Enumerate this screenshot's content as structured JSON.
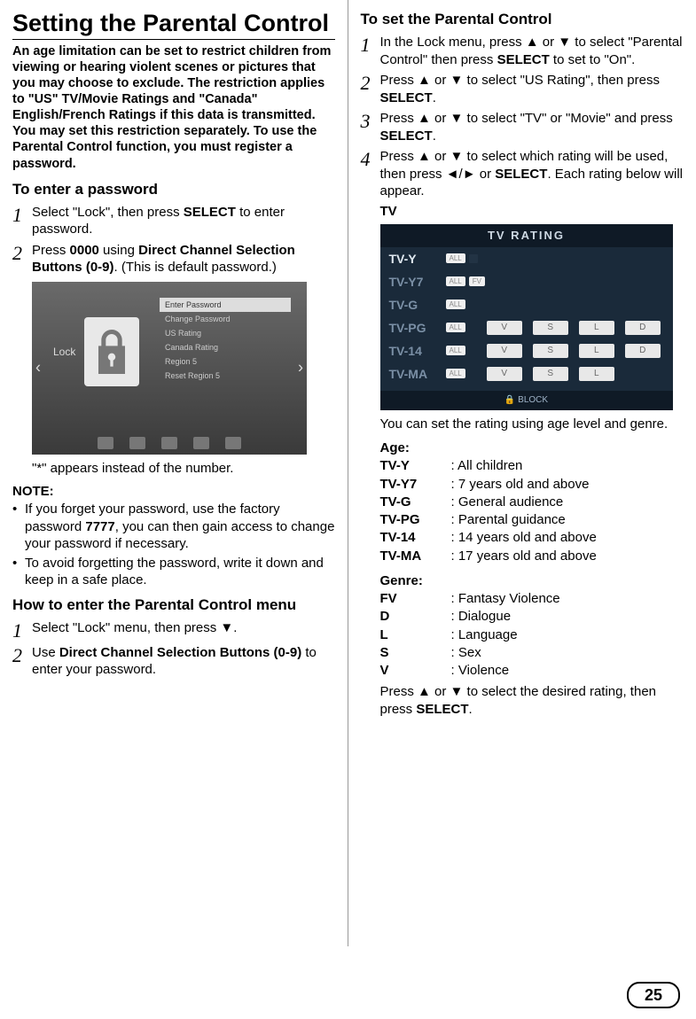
{
  "pageNumber": "25",
  "left": {
    "title": "Setting the Parental Control",
    "intro": "An age limitation can be set to restrict children from viewing or hearing violent scenes or pictures that you may choose to exclude. The restriction applies to \"US\" TV/Movie Ratings and \"Canada\" English/French Ratings if this data is transmitted. You may set this restriction separately. To use the Parental Control function, you must register a password.",
    "enterPassword": {
      "heading": "To enter a password",
      "steps": [
        {
          "num": "1",
          "html": "Select \"Lock\", then press <b>SELECT</b> to enter password."
        },
        {
          "num": "2",
          "html": "Press <b>0000</b> using <b>Direct Channel Selection Buttons (0-9)</b>. (This is default password.)"
        }
      ],
      "starNote": "\"*\" appears instead of the number.",
      "lockMenuItems": [
        "Enter Password",
        "Change Password",
        "US Rating",
        "Canada Rating",
        "Region 5",
        "Reset Region 5"
      ],
      "lockLabel": "Lock",
      "noteHd": "NOTE:",
      "notes": [
        "If you forget your password, use the factory password <b>7777</b>, you can then gain access to change your password if necessary.",
        "To avoid forgetting the password, write it down and keep in a safe place."
      ]
    },
    "enterMenu": {
      "heading": "How to enter the Parental Control menu",
      "steps": [
        {
          "num": "1",
          "html": "Select \"Lock\" menu, then press ▼."
        },
        {
          "num": "2",
          "html": "Use <b>Direct Channel Selection Buttons (0-9)</b> to enter your password."
        }
      ]
    }
  },
  "right": {
    "heading": "To set the Parental Control",
    "steps": [
      {
        "num": "1",
        "html": "In the Lock menu, press ▲ or ▼ to select \"Parental Control\" then press <b>SELECT</b> to set to \"On\"."
      },
      {
        "num": "2",
        "html": "Press ▲ or ▼ to select \"US Rating\", then press <b>SELECT</b>."
      },
      {
        "num": "3",
        "html": "Press ▲ or ▼ to select \"TV\" or \"Movie\" and press <b>SELECT</b>."
      },
      {
        "num": "4",
        "html": "Press ▲ or ▼ to select which rating will be used, then press ◄/► or <b>SELECT</b>. Each rating below will appear."
      }
    ],
    "tvLabel": "TV",
    "tvRating": {
      "title": "TV RATING",
      "rows": [
        {
          "label": "TV-Y",
          "all": true,
          "lock": true,
          "cells": []
        },
        {
          "label": "TV-Y7",
          "all": true,
          "fv": true,
          "cells": []
        },
        {
          "label": "TV-G",
          "all": true,
          "cells": []
        },
        {
          "label": "TV-PG",
          "all": true,
          "cells": [
            "V",
            "S",
            "L",
            "D"
          ]
        },
        {
          "label": "TV-14",
          "all": true,
          "cells": [
            "V",
            "S",
            "L",
            "D"
          ]
        },
        {
          "label": "TV-MA",
          "all": true,
          "cells": [
            "V",
            "S",
            "L"
          ]
        }
      ],
      "footer": "🔒 BLOCK"
    },
    "afterTv": "You can set the rating using age level and genre.",
    "ageHd": "Age:",
    "ages": [
      {
        "k": "TV-Y",
        "v": "All children"
      },
      {
        "k": "TV-Y7",
        "v": "7 years old and above"
      },
      {
        "k": "TV-G",
        "v": "General audience"
      },
      {
        "k": "TV-PG",
        "v": "Parental guidance"
      },
      {
        "k": "TV-14",
        "v": "14 years old and above"
      },
      {
        "k": "TV-MA",
        "v": "17 years old and above"
      }
    ],
    "genreHd": "Genre:",
    "genres": [
      {
        "k": "FV",
        "v": "Fantasy Violence"
      },
      {
        "k": "D",
        "v": "Dialogue"
      },
      {
        "k": "L",
        "v": "Language"
      },
      {
        "k": "S",
        "v": "Sex"
      },
      {
        "k": "V",
        "v": "Violence"
      }
    ],
    "final": "Press ▲ or ▼ to select the desired rating, then press <b>SELECT</b>."
  }
}
